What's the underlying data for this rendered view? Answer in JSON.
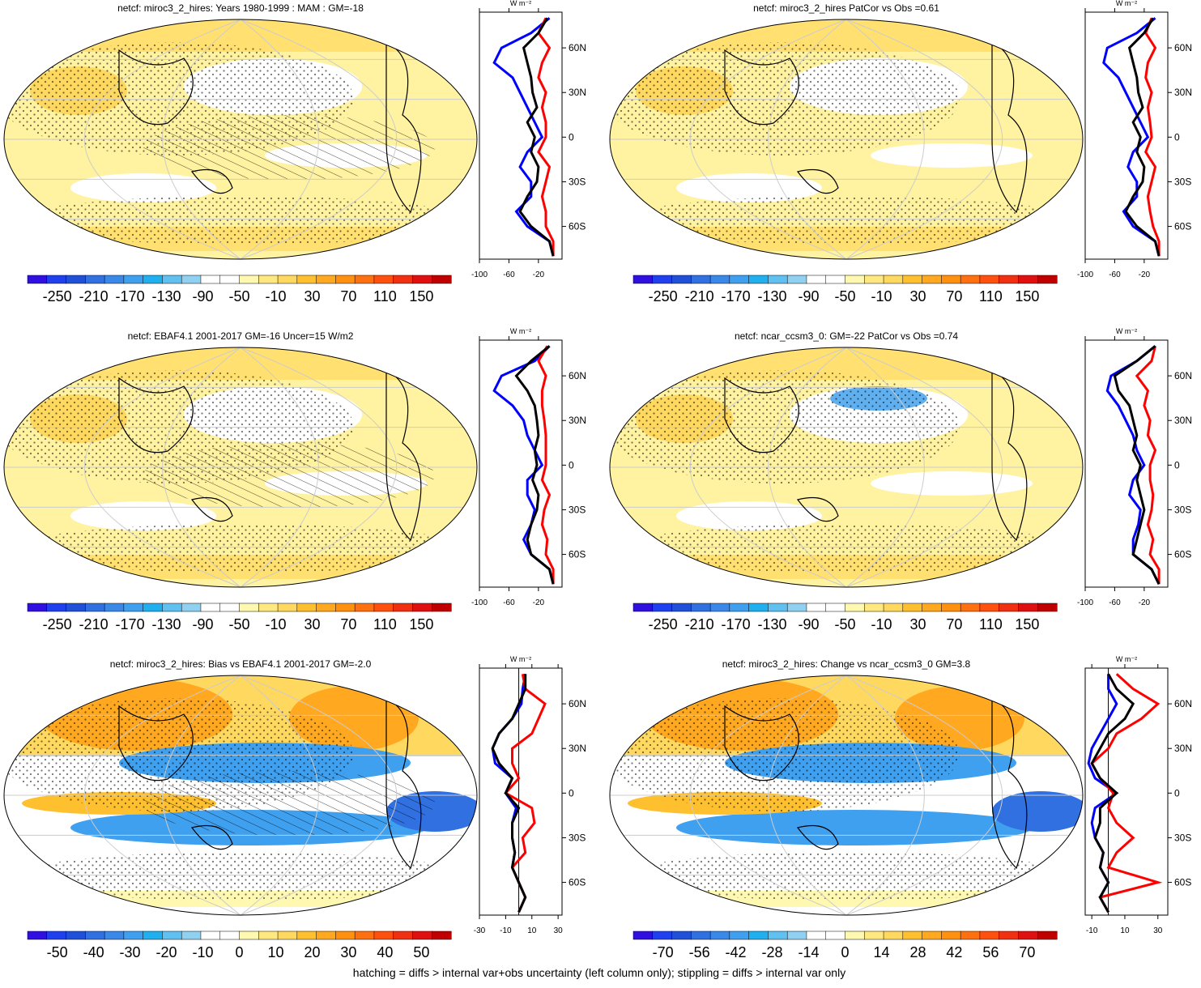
{
  "chart_data": [
    {
      "type": "map",
      "title": "netcf: miroc3_2_hires: Years 1980-1999 : MAM : GM=-18",
      "colorbar": {
        "colors": [
          "#3010e0",
          "#2040f0",
          "#2050d8",
          "#3070e0",
          "#3a88e8",
          "#40a0f0",
          "#20b0f0",
          "#60c0f0",
          "#90d0f0",
          "#ffffff",
          "#ffffff",
          "#fff8b0",
          "#ffe880",
          "#ffd860",
          "#ffc030",
          "#ffa820",
          "#ff9010",
          "#ff7010",
          "#ff5010",
          "#f03010",
          "#e01010",
          "#c00000"
        ],
        "ticks": [
          -250,
          -210,
          -170,
          -130,
          -90,
          -50,
          -10,
          30,
          70,
          110,
          150
        ]
      },
      "zonal": {
        "type": "line",
        "unit": "W m⁻²",
        "xlim": [
          -100,
          12
        ],
        "xticks": [
          -100,
          -60,
          -20
        ],
        "ylim": [
          -82,
          84
        ],
        "yticks": [
          {
            "value": 60,
            "label": "60N"
          },
          {
            "value": 30,
            "label": "30N"
          },
          0,
          {
            "value": -30,
            "label": "30S"
          },
          {
            "value": -60,
            "label": "60S"
          }
        ],
        "lat": [
          -80,
          -70,
          -60,
          -50,
          -40,
          -30,
          -20,
          -10,
          0,
          10,
          20,
          30,
          40,
          50,
          60,
          70,
          80
        ],
        "series": [
          {
            "color": "#0000ff",
            "values": [
              0,
              -5,
              -35,
              -50,
              -30,
              -30,
              -45,
              -35,
              -15,
              -25,
              -35,
              -45,
              -55,
              -80,
              -70,
              -30,
              -5
            ]
          },
          {
            "color": "#ff0000",
            "values": [
              0,
              0,
              -10,
              -10,
              -15,
              -10,
              -5,
              -20,
              -10,
              -10,
              -15,
              -10,
              -20,
              -15,
              -5,
              -20,
              -10
            ]
          },
          {
            "color": "#000000",
            "values": [
              0,
              -5,
              -30,
              -45,
              -35,
              -22,
              -20,
              -30,
              -25,
              -35,
              -22,
              -28,
              -30,
              -35,
              -40,
              -20,
              -8
            ]
          }
        ]
      }
    },
    {
      "type": "map",
      "title": "netcf: miroc3_2_hires PatCor vs Obs =0.61",
      "colorbar": {
        "colors": [
          "#3010e0",
          "#2040f0",
          "#2050d8",
          "#3070e0",
          "#3a88e8",
          "#40a0f0",
          "#20b0f0",
          "#60c0f0",
          "#90d0f0",
          "#ffffff",
          "#ffffff",
          "#fff8b0",
          "#ffe880",
          "#ffd860",
          "#ffc030",
          "#ffa820",
          "#ff9010",
          "#ff7010",
          "#ff5010",
          "#f03010",
          "#e01010",
          "#c00000"
        ],
        "ticks": [
          -250,
          -210,
          -170,
          -130,
          -90,
          -50,
          -10,
          30,
          70,
          110,
          150
        ]
      },
      "zonal": {
        "type": "line",
        "unit": "W m⁻²",
        "xlim": [
          -100,
          12
        ],
        "xticks": [
          -100,
          -60,
          -20
        ],
        "ylim": [
          -82,
          84
        ],
        "yticks": [
          {
            "value": 60,
            "label": "60N"
          },
          {
            "value": 30,
            "label": "30N"
          },
          0,
          {
            "value": -30,
            "label": "30S"
          },
          {
            "value": -60,
            "label": "60S"
          }
        ],
        "lat": [
          -80,
          -70,
          -60,
          -50,
          -40,
          -30,
          -20,
          -10,
          0,
          10,
          20,
          30,
          40,
          50,
          60,
          70,
          80
        ],
        "series": [
          {
            "color": "#0000ff",
            "values": [
              0,
              -5,
              -35,
              -48,
              -30,
              -30,
              -42,
              -35,
              -15,
              -25,
              -35,
              -45,
              -55,
              -75,
              -70,
              -30,
              -5
            ]
          },
          {
            "color": "#ff0000",
            "values": [
              0,
              0,
              -8,
              -12,
              -15,
              -10,
              -5,
              -18,
              -10,
              -12,
              -15,
              -10,
              -18,
              -15,
              -5,
              -18,
              -10
            ]
          },
          {
            "color": "#000000",
            "values": [
              0,
              -5,
              -30,
              -45,
              -35,
              -22,
              -20,
              -30,
              -25,
              -35,
              -22,
              -28,
              -30,
              -35,
              -40,
              -20,
              -8
            ]
          }
        ]
      }
    },
    {
      "type": "map",
      "title": "netcf: EBAF4.1 2001-2017 GM=-16 Uncer=15 W/m2",
      "colorbar": {
        "colors": [
          "#3010e0",
          "#2040f0",
          "#2050d8",
          "#3070e0",
          "#3a88e8",
          "#40a0f0",
          "#20b0f0",
          "#60c0f0",
          "#90d0f0",
          "#ffffff",
          "#ffffff",
          "#fff8b0",
          "#ffe880",
          "#ffd860",
          "#ffc030",
          "#ffa820",
          "#ff9010",
          "#ff7010",
          "#ff5010",
          "#f03010",
          "#e01010",
          "#c00000"
        ],
        "ticks": [
          -250,
          -210,
          -170,
          -130,
          -90,
          -50,
          -10,
          30,
          70,
          110,
          150
        ]
      },
      "zonal": {
        "type": "line",
        "unit": "W m⁻²",
        "xlim": [
          -100,
          12
        ],
        "xticks": [
          -100,
          -60,
          -20
        ],
        "ylim": [
          -82,
          84
        ],
        "yticks": [
          {
            "value": 60,
            "label": "60N"
          },
          {
            "value": 30,
            "label": "30N"
          },
          0,
          {
            "value": -30,
            "label": "30S"
          },
          {
            "value": -60,
            "label": "60S"
          }
        ],
        "lat": [
          -80,
          -70,
          -60,
          -50,
          -40,
          -30,
          -20,
          -10,
          0,
          10,
          20,
          30,
          40,
          50,
          60,
          70,
          80
        ],
        "series": [
          {
            "color": "#0000ff",
            "values": [
              0,
              -5,
              -30,
              -40,
              -30,
              -25,
              -35,
              -35,
              -15,
              -25,
              -35,
              -40,
              -55,
              -80,
              -70,
              -25,
              -5
            ]
          },
          {
            "color": "#ff0000",
            "values": [
              0,
              0,
              -10,
              -8,
              -15,
              -12,
              -5,
              -15,
              -10,
              -10,
              -10,
              -12,
              -15,
              -15,
              -10,
              -20,
              -8
            ]
          },
          {
            "color": "#000000",
            "values": [
              0,
              -5,
              -30,
              -35,
              -30,
              -22,
              -20,
              -28,
              -22,
              -25,
              -20,
              -22,
              -25,
              -35,
              -50,
              -30,
              -5
            ]
          }
        ]
      }
    },
    {
      "type": "map",
      "title": "netcf: ncar_ccsm3_0: GM=-22 PatCor vs Obs =0.74",
      "colorbar": {
        "colors": [
          "#3010e0",
          "#2040f0",
          "#2050d8",
          "#3070e0",
          "#3a88e8",
          "#40a0f0",
          "#20b0f0",
          "#60c0f0",
          "#90d0f0",
          "#ffffff",
          "#ffffff",
          "#fff8b0",
          "#ffe880",
          "#ffd860",
          "#ffc030",
          "#ffa820",
          "#ff9010",
          "#ff7010",
          "#ff5010",
          "#f03010",
          "#e01010",
          "#c00000"
        ],
        "ticks": [
          -250,
          -210,
          -170,
          -130,
          -90,
          -50,
          -10,
          30,
          70,
          110,
          150
        ]
      },
      "zonal": {
        "type": "line",
        "unit": "W m⁻²",
        "xlim": [
          -100,
          12
        ],
        "xticks": [
          -100,
          -60,
          -20
        ],
        "ylim": [
          -82,
          84
        ],
        "yticks": [
          {
            "value": 60,
            "label": "60N"
          },
          {
            "value": 30,
            "label": "30N"
          },
          0,
          {
            "value": -30,
            "label": "30S"
          },
          {
            "value": -60,
            "label": "60S"
          }
        ],
        "lat": [
          -80,
          -70,
          -60,
          -50,
          -40,
          -30,
          -20,
          -10,
          0,
          10,
          20,
          30,
          40,
          50,
          60,
          70,
          80
        ],
        "series": [
          {
            "color": "#0000ff",
            "values": [
              0,
              -10,
              -35,
              -35,
              -28,
              -25,
              -40,
              -35,
              -20,
              -30,
              -35,
              -45,
              -55,
              -70,
              -65,
              -30,
              -5
            ]
          },
          {
            "color": "#ff0000",
            "values": [
              0,
              0,
              -12,
              -8,
              -15,
              -10,
              -8,
              -12,
              -12,
              -5,
              -15,
              -12,
              -20,
              -15,
              -30,
              -10,
              -5
            ]
          },
          {
            "color": "#000000",
            "values": [
              0,
              -10,
              -35,
              -30,
              -25,
              -20,
              -25,
              -30,
              -25,
              -35,
              -30,
              -35,
              -40,
              -55,
              -60,
              -30,
              -5
            ]
          }
        ]
      }
    },
    {
      "type": "map",
      "title": "netcf: miroc3_2_hires: Bias vs EBAF4.1 2001-2017 GM=-2.0",
      "colorbar": {
        "colors": [
          "#3010e0",
          "#2040f0",
          "#2050d8",
          "#3070e0",
          "#3a88e8",
          "#40a0f0",
          "#20b0f0",
          "#60c0f0",
          "#90d0f0",
          "#ffffff",
          "#ffffff",
          "#fff8b0",
          "#ffe880",
          "#ffd860",
          "#ffc030",
          "#ffa820",
          "#ff9010",
          "#ff7010",
          "#ff5010",
          "#f03010",
          "#e01010",
          "#c00000"
        ],
        "ticks": [
          -50,
          -40,
          -30,
          -20,
          -10,
          0,
          10,
          20,
          30,
          40,
          50
        ]
      },
      "zonal": {
        "type": "line",
        "unit": "W m⁻²",
        "xlim": [
          -30,
          33
        ],
        "xticks": [
          -30,
          -10,
          10,
          30
        ],
        "ylim": [
          -82,
          84
        ],
        "yticks": [
          {
            "value": 60,
            "label": "60N"
          },
          {
            "value": 30,
            "label": "30N"
          },
          0,
          {
            "value": -30,
            "label": "30S"
          },
          {
            "value": -60,
            "label": "60S"
          }
        ],
        "lat": [
          -80,
          -70,
          -60,
          -50,
          -40,
          -30,
          -20,
          -10,
          0,
          10,
          20,
          30,
          40,
          50,
          60,
          70,
          80
        ],
        "series": [
          {
            "color": "#0000ff",
            "values": [
              0,
              5,
              0,
              -5,
              -3,
              -5,
              -5,
              -2,
              -10,
              -5,
              -18,
              -20,
              -15,
              -5,
              2,
              3,
              5
            ]
          },
          {
            "color": "#ff0000",
            "values": [
              0,
              5,
              0,
              -5,
              5,
              3,
              12,
              10,
              -10,
              0,
              -5,
              -5,
              10,
              15,
              20,
              5,
              3
            ]
          },
          {
            "color": "#000000",
            "values": [
              0,
              5,
              0,
              -5,
              -3,
              -5,
              -5,
              0,
              -10,
              -5,
              -15,
              -20,
              -15,
              -5,
              0,
              5,
              5
            ]
          }
        ]
      }
    },
    {
      "type": "map",
      "title": "netcf: miroc3_2_hires: Change vs ncar_ccsm3_0 GM=3.8",
      "colorbar": {
        "colors": [
          "#3010e0",
          "#2040f0",
          "#2050d8",
          "#3070e0",
          "#3a88e8",
          "#40a0f0",
          "#20b0f0",
          "#60c0f0",
          "#90d0f0",
          "#ffffff",
          "#ffffff",
          "#fff8b0",
          "#ffe880",
          "#ffd860",
          "#ffc030",
          "#ffa820",
          "#ff9010",
          "#ff7010",
          "#ff5010",
          "#f03010",
          "#e01010",
          "#c00000"
        ],
        "ticks": [
          -70,
          -56,
          -42,
          -28,
          -14,
          0,
          14,
          28,
          42,
          56,
          70
        ]
      },
      "zonal": {
        "type": "line",
        "unit": "W m⁻²",
        "xlim": [
          -14,
          36
        ],
        "xticks": [
          -10,
          10,
          30
        ],
        "ylim": [
          -82,
          84
        ],
        "yticks": [
          {
            "value": 60,
            "label": "60N"
          },
          {
            "value": 30,
            "label": "30N"
          },
          0,
          {
            "value": -30,
            "label": "30S"
          },
          {
            "value": -60,
            "label": "60S"
          }
        ],
        "lat": [
          -80,
          -70,
          -60,
          -50,
          -40,
          -30,
          -20,
          -10,
          0,
          10,
          20,
          30,
          40,
          50,
          60,
          70,
          80
        ],
        "series": [
          {
            "color": "#0000ff",
            "values": [
              0,
              -5,
              0,
              -5,
              -3,
              -8,
              -10,
              -8,
              5,
              -8,
              -12,
              -10,
              -5,
              0,
              5,
              0,
              0
            ]
          },
          {
            "color": "#ff0000",
            "values": [
              0,
              -5,
              30,
              0,
              5,
              15,
              5,
              0,
              3,
              -5,
              -10,
              0,
              5,
              20,
              30,
              15,
              5
            ]
          },
          {
            "color": "#000000",
            "values": [
              0,
              -5,
              0,
              -5,
              -3,
              -8,
              -5,
              -5,
              5,
              -5,
              -10,
              -5,
              0,
              10,
              15,
              5,
              0
            ]
          }
        ]
      }
    }
  ],
  "caption": "hatching = diffs > internal var+obs uncertainty (left column only); stippling = diffs > internal var only"
}
